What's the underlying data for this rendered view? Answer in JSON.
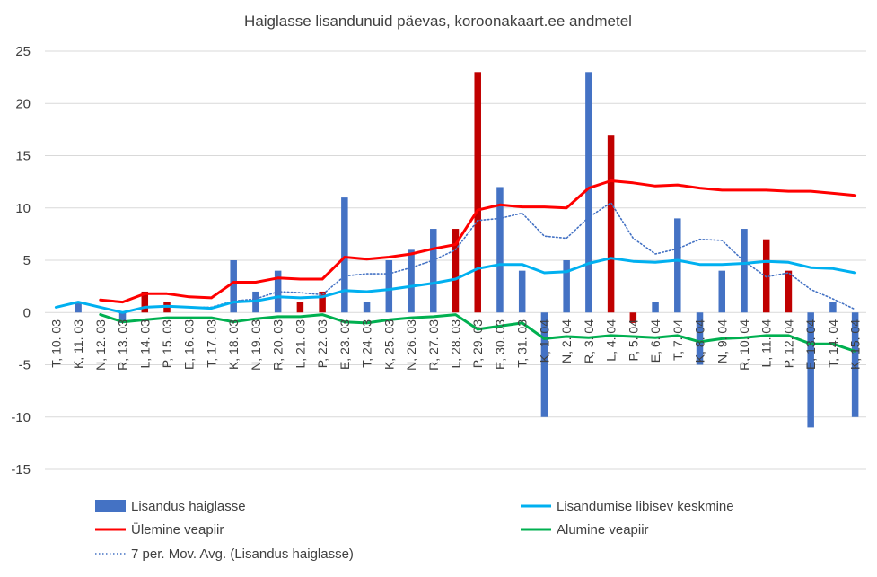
{
  "chart_data": {
    "type": "bar",
    "title": "Haiglasse lisandunuid päevas, koroonakaart.ee andmetel",
    "xlabel": "",
    "ylabel": "",
    "ylim": [
      -15,
      25
    ],
    "yticks": [
      25,
      20,
      15,
      10,
      5,
      0,
      -5,
      -10,
      -15
    ],
    "grid": true,
    "legend_position": "bottom",
    "categories": [
      "T, 10. 03",
      "K, 11. 03",
      "N, 12. 03",
      "R, 13. 03",
      "L, 14. 03",
      "P, 15. 03",
      "E, 16. 03",
      "T, 17. 03",
      "K, 18. 03",
      "N, 19. 03",
      "R, 20. 03",
      "L, 21. 03",
      "P, 22. 03",
      "E, 23. 03",
      "T, 24. 03",
      "K, 25. 03",
      "N, 26. 03",
      "R, 27. 03",
      "L, 28. 03",
      "P, 29. 03",
      "E, 30. 03",
      "T, 31. 03",
      "K, 1. 04",
      "N, 2. 04",
      "R, 3. 04",
      "L, 4. 04",
      "P, 5. 04",
      "E, 6. 04",
      "T, 7. 04",
      "K, 8. 04",
      "N, 9. 04",
      "R, 10. 04",
      "L, 11. 04",
      "P, 12. 04",
      "E, 13. 04",
      "T, 14. 04",
      "K, 15. 04"
    ],
    "series": [
      {
        "name": "Lisandus haiglasse",
        "kind": "bar",
        "color": "#4472C4",
        "highlight_color": "#C00000",
        "highlight_indices": [
          4,
          5,
          11,
          12,
          18,
          19,
          25,
          26,
          32,
          33
        ],
        "values": [
          0,
          1,
          0,
          -1,
          2,
          1,
          0,
          0,
          5,
          2,
          4,
          1,
          2,
          11,
          1,
          5,
          6,
          8,
          8,
          23,
          12,
          4,
          -10,
          5,
          23,
          17,
          -1,
          1,
          9,
          -5,
          4,
          8,
          7,
          4,
          -11,
          1,
          -10
        ]
      },
      {
        "name": "Lisandumise libisev keskmine",
        "kind": "line",
        "color": "#00B0F0",
        "values": [
          0.5,
          1.0,
          0.5,
          0.0,
          0.5,
          0.6,
          0.5,
          0.4,
          1.0,
          1.1,
          1.5,
          1.4,
          1.5,
          2.1,
          2.0,
          2.2,
          2.5,
          2.8,
          3.2,
          4.2,
          4.6,
          4.6,
          3.8,
          3.9,
          4.7,
          5.2,
          4.9,
          4.8,
          5.0,
          4.6,
          4.6,
          4.7,
          4.9,
          4.8,
          4.3,
          4.2,
          3.8
        ]
      },
      {
        "name": "Ülemine veapiir",
        "kind": "line",
        "color": "#FF0000",
        "values": [
          null,
          null,
          1.2,
          1.0,
          1.8,
          1.8,
          1.5,
          1.4,
          2.9,
          2.9,
          3.3,
          3.2,
          3.2,
          5.3,
          5.1,
          5.3,
          5.6,
          6.1,
          6.5,
          9.8,
          10.3,
          10.1,
          10.1,
          10.0,
          11.9,
          12.6,
          12.4,
          12.1,
          12.2,
          11.9,
          11.7,
          11.7,
          11.7,
          11.6,
          11.6,
          11.4,
          11.2
        ]
      },
      {
        "name": "Alumine veapiir",
        "kind": "line",
        "color": "#00B050",
        "values": [
          null,
          null,
          -0.2,
          -0.9,
          -0.7,
          -0.5,
          -0.5,
          -0.5,
          -0.9,
          -0.6,
          -0.4,
          -0.4,
          -0.2,
          -0.9,
          -1.0,
          -0.7,
          -0.5,
          -0.4,
          -0.2,
          -1.6,
          -1.3,
          -1.0,
          -2.5,
          -2.3,
          -2.4,
          -2.2,
          -2.3,
          -2.4,
          -2.2,
          -2.8,
          -2.5,
          -2.4,
          -2.2,
          -2.2,
          -3.0,
          -3.0,
          -3.7
        ]
      },
      {
        "name": "7 per. Mov. Avg. (Lisandus haiglasse)",
        "kind": "line",
        "style": "dotted",
        "color": "#4472C4",
        "values": [
          null,
          null,
          null,
          null,
          null,
          null,
          0.5,
          0.5,
          1.1,
          1.3,
          2.0,
          1.9,
          1.7,
          3.5,
          3.7,
          3.7,
          4.3,
          5.0,
          6.0,
          8.8,
          9.0,
          9.5,
          7.3,
          7.1,
          9.1,
          10.5,
          7.1,
          5.6,
          6.1,
          7.0,
          6.9,
          4.9,
          3.4,
          3.8,
          2.2,
          1.3,
          0.3
        ]
      }
    ]
  }
}
